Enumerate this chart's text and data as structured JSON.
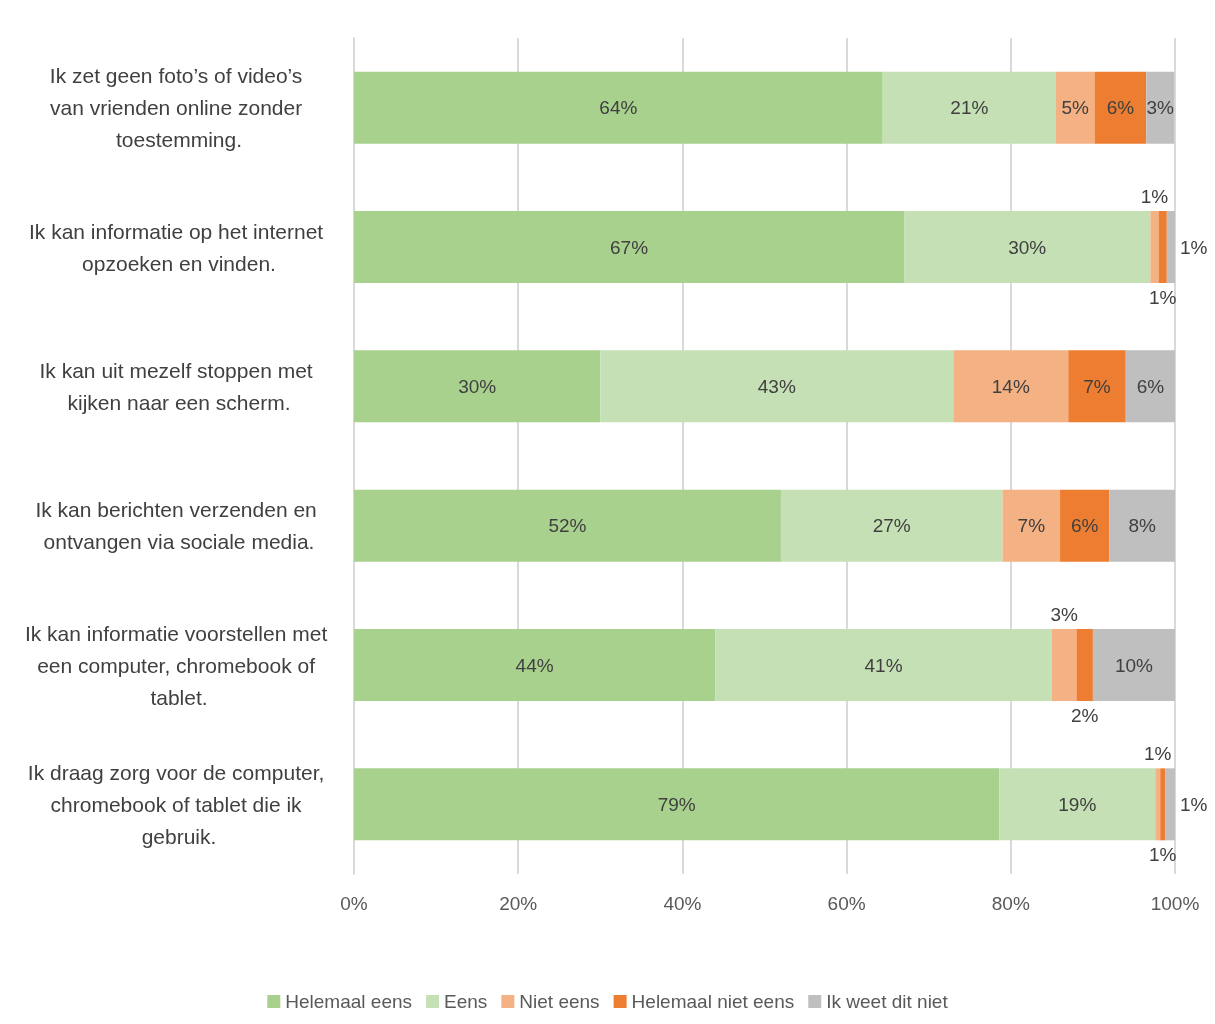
{
  "chart_data": {
    "type": "bar",
    "orientation": "horizontal",
    "stacked": true,
    "categories": [
      "Ik zet geen foto’s of video’s van vrienden online zonder toestemming.",
      "Ik kan informatie op het internet opzoeken en vinden.",
      "Ik kan uit mezelf stoppen met kijken naar een scherm.",
      "Ik kan berichten verzenden en ontvangen via sociale media.",
      "Ik kan informatie voorstellen met een computer, chromebook of tablet.",
      "Ik draag zorg voor de computer, chromebook of tablet die ik gebruik."
    ],
    "series": [
      {
        "name": "Helemaal eens",
        "color": "#a9d18e",
        "values": [
          64.4,
          67,
          30,
          52,
          44,
          78.6
        ],
        "value_labels": [
          "64%",
          "67%",
          "30%",
          "52%",
          "44%",
          "79%"
        ]
      },
      {
        "name": "Eens",
        "color": "#c5e0b4",
        "values": [
          21.1,
          30,
          43,
          27,
          41,
          19
        ],
        "value_labels": [
          "21%",
          "30%",
          "43%",
          "27%",
          "41%",
          "19%"
        ]
      },
      {
        "name": "Niet eens",
        "color": "#f4b183",
        "values": [
          4.7,
          1,
          14,
          7,
          3,
          0.6
        ],
        "value_labels": [
          "5%",
          "1%",
          "14%",
          "7%",
          "3%",
          "1%"
        ]
      },
      {
        "name": "Helemaal niet eens",
        "color": "#ed7d31",
        "values": [
          6.3,
          1,
          7,
          6,
          2,
          0.6
        ],
        "value_labels": [
          "6%",
          "1%",
          "7%",
          "6%",
          "2%",
          "1%"
        ]
      },
      {
        "name": "Ik weet dit niet",
        "color": "#bfbfbf",
        "values": [
          3.4,
          1,
          6,
          8,
          10,
          1.2
        ],
        "value_labels": [
          "3%",
          "1%",
          "6%",
          "8%",
          "10%",
          "1%"
        ]
      }
    ],
    "xlim": [
      0,
      100
    ],
    "xticks": [
      {
        "value": 0,
        "label": "0%"
      },
      {
        "value": 20,
        "label": "20%"
      },
      {
        "value": 40,
        "label": "40%"
      },
      {
        "value": 60,
        "label": "60%"
      },
      {
        "value": 80,
        "label": "80%"
      },
      {
        "value": 100,
        "label": "100%"
      }
    ],
    "grid": "x",
    "legend": "bottom"
  }
}
